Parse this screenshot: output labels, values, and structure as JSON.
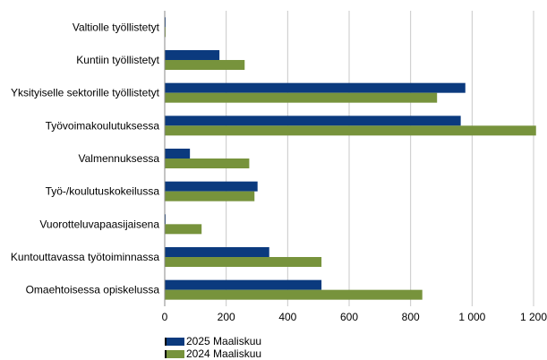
{
  "chart_data": {
    "type": "bar",
    "orientation": "horizontal",
    "categories": [
      "Valtiolle työllistetyt",
      "Kuntiin työllistetyt",
      "Yksityiselle sektorille työllistetyt",
      "Työvoimakoulutuksessa",
      "Valmennuksessa",
      "Työ-/koulutuskokeilussa",
      "Vuorotteluvapaasijaisena",
      "Kuntouttavassa työtoiminnassa",
      "Omaehtoisessa opiskelussa"
    ],
    "series": [
      {
        "name": "2025 Maaliskuu",
        "color": "#0b3a7e",
        "values": [
          3,
          178,
          978,
          963,
          82,
          302,
          3,
          340,
          510
        ]
      },
      {
        "name": "2024 Maaliskuu",
        "color": "#77933c",
        "values": [
          3,
          260,
          886,
          1208,
          275,
          292,
          120,
          510,
          838
        ]
      }
    ],
    "xlim": [
      0,
      1200
    ],
    "xticks": [
      0,
      200,
      400,
      600,
      800,
      1000,
      1200
    ],
    "xtick_labels": [
      "0",
      "200",
      "400",
      "600",
      "800",
      "1 000",
      "1 200"
    ],
    "grid": "vertical",
    "legend_position": "bottom-left"
  }
}
